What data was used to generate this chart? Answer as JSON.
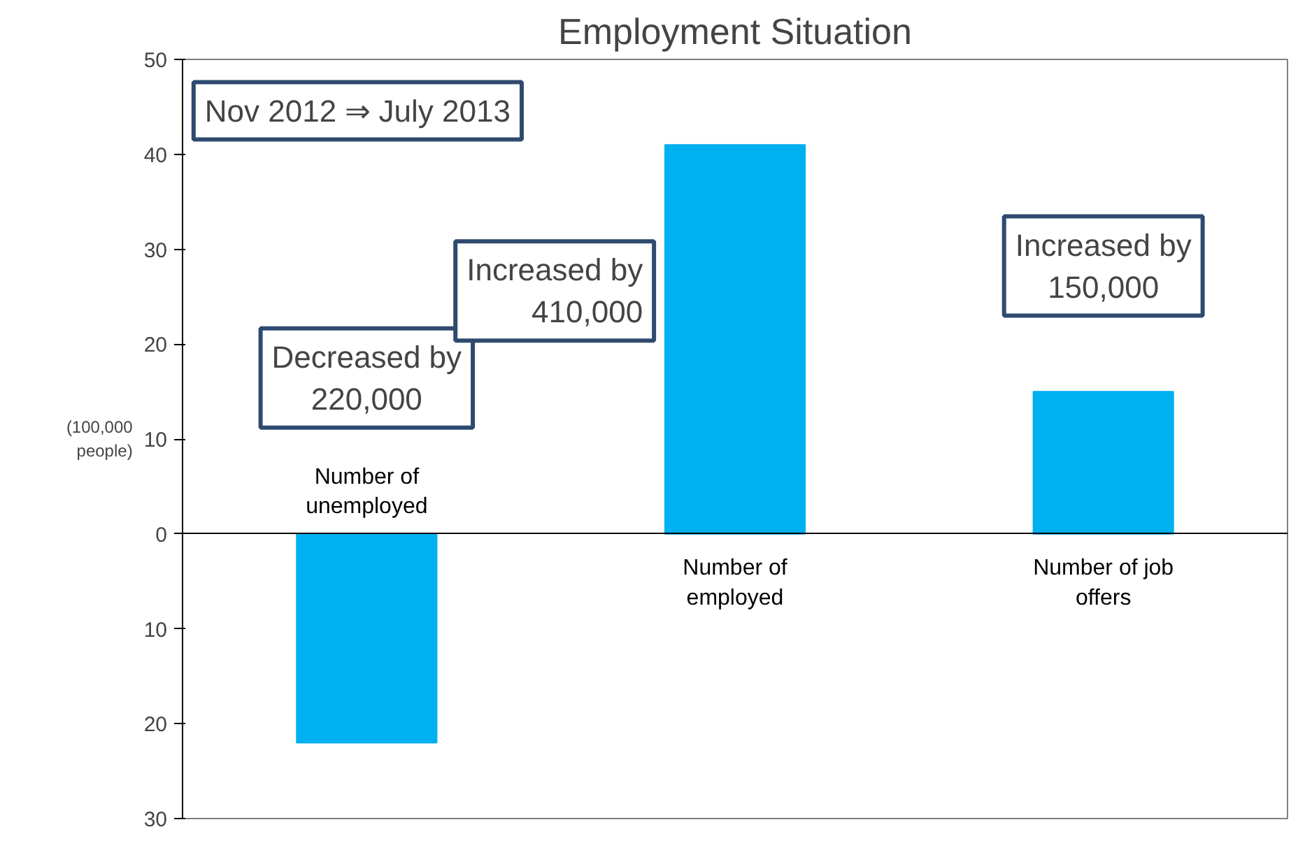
{
  "chart_data": {
    "type": "bar",
    "title": "Employment Situation",
    "ylabel": "(100,000\npeople)",
    "categories": [
      "Number of\nunemployed",
      "Number of\nemployed",
      "Number of job\noffers"
    ],
    "values": [
      -22,
      41,
      15
    ],
    "color": "#00b0f0",
    "ylim": [
      -30,
      50
    ],
    "yticks": [
      {
        "value": -30,
        "label": "30"
      },
      {
        "value": -20,
        "label": "20"
      },
      {
        "value": -10,
        "label": "10"
      },
      0,
      10,
      20,
      30,
      40,
      50
    ],
    "annotations": [
      "Nov 2012 ⇒ July 2013",
      "Decreased by\n220,000",
      "Increased by\n410,000",
      "Increased by\n150,000"
    ],
    "grid": false
  }
}
